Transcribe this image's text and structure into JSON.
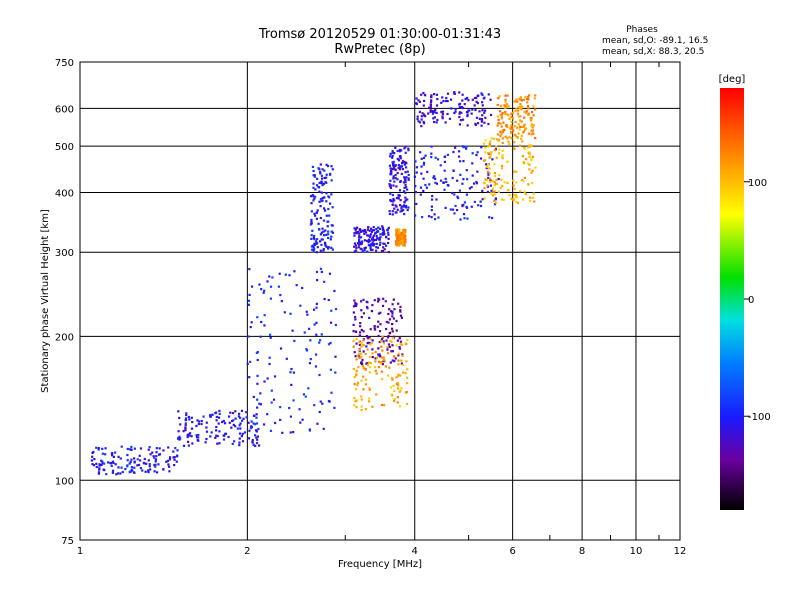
{
  "chart_data": {
    "type": "scatter",
    "title": "Tromsø 20120529 01:30:00-01:31:43",
    "subtitle": "RwPretec (8p)",
    "stats_title": "Phases",
    "stats_line1": "mean, sd,O: -89.1, 16.5",
    "stats_line2": "mean, sd,X:  88.3, 20.5",
    "xlabel": "Frequency [MHz]",
    "ylabel": "Stationary phase Virtual Height [km]",
    "x_scale": "log",
    "y_scale": "log",
    "xlim": [
      1,
      12
    ],
    "ylim": [
      75,
      750
    ],
    "xticks": [
      1,
      2,
      4,
      6,
      8,
      10,
      12
    ],
    "yticks": [
      75,
      100,
      200,
      300,
      400,
      500,
      600,
      750
    ],
    "x_grid": [
      2,
      4,
      6,
      8,
      10
    ],
    "y_grid": [
      100,
      200,
      300,
      400,
      500,
      600
    ],
    "colorbar": {
      "label": "[deg]",
      "range": [
        -180,
        180
      ],
      "ticks": [
        100,
        0,
        -100
      ],
      "colormap": "rainbow"
    },
    "points_description_values_in_data_units": true,
    "traces": [
      {
        "name": "",
        "x_range": [
          1.05,
          1.5
        ],
        "y_range": [
          103,
          118
        ],
        "phase": -100
      },
      {
        "name": "",
        "x_range": [
          1.5,
          2.1
        ],
        "y_range": [
          118,
          140
        ],
        "phase": -105
      },
      {
        "name": "",
        "x_range": [
          2.0,
          2.9
        ],
        "y_range": [
          125,
          280
        ],
        "phase": -95
      },
      {
        "name": "",
        "x_range": [
          2.6,
          2.85
        ],
        "y_range": [
          300,
          460
        ],
        "phase": -100
      },
      {
        "name": "",
        "x_range": [
          3.1,
          3.8
        ],
        "y_range": [
          175,
          240
        ],
        "phase": -130
      },
      {
        "name": "",
        "x_range": [
          3.1,
          3.9
        ],
        "y_range": [
          140,
          200
        ],
        "phase": 110
      },
      {
        "name": "",
        "x_range": [
          3.1,
          3.6
        ],
        "y_range": [
          300,
          340
        ],
        "phase": -110
      },
      {
        "name": "",
        "x_range": [
          3.6,
          3.9
        ],
        "y_range": [
          360,
          500
        ],
        "phase": -110
      },
      {
        "name": "",
        "x_range": [
          3.7,
          3.85
        ],
        "y_range": [
          310,
          335
        ],
        "phase": 120
      },
      {
        "name": "",
        "x_range": [
          4.0,
          5.7
        ],
        "y_range": [
          350,
          500
        ],
        "phase": -100
      },
      {
        "name": "",
        "x_range": [
          4.0,
          5.5
        ],
        "y_range": [
          550,
          650
        ],
        "phase": -115
      },
      {
        "name": "",
        "x_range": [
          5.3,
          6.6
        ],
        "y_range": [
          380,
          520
        ],
        "phase": 105
      },
      {
        "name": "",
        "x_range": [
          5.6,
          6.6
        ],
        "y_range": [
          520,
          640
        ],
        "phase": 120
      }
    ]
  }
}
